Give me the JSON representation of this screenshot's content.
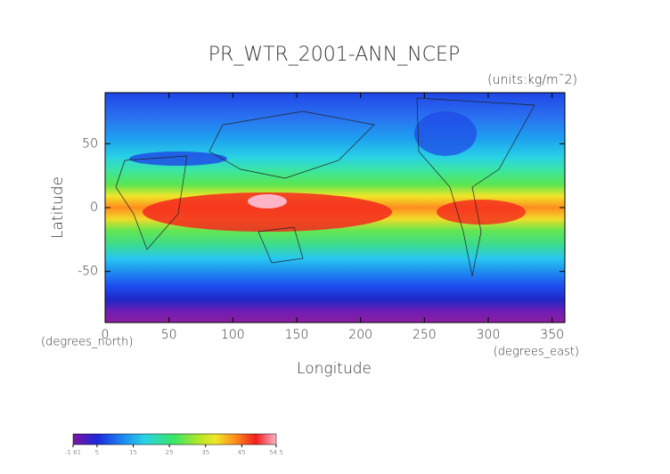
{
  "chart_data": {
    "type": "contour_map",
    "title": "PR_WTR_2001-ANN_NCEP",
    "units_label": "(units:kg/m¯2)",
    "xlabel": "Longitude",
    "ylabel": "Latitude",
    "x_unit_label": "(degrees_east)",
    "y_unit_label": "(degrees_north)",
    "xlim": [
      0,
      360
    ],
    "ylim": [
      -90,
      90
    ],
    "xticks": [
      0,
      50,
      100,
      150,
      200,
      250,
      300,
      350
    ],
    "yticks": [
      -50,
      0,
      50
    ],
    "colorbar": {
      "lim": [
        -1.61,
        54.5
      ],
      "ticks": [
        -1.61,
        5,
        15,
        25,
        35,
        45,
        54.5
      ]
    }
  }
}
